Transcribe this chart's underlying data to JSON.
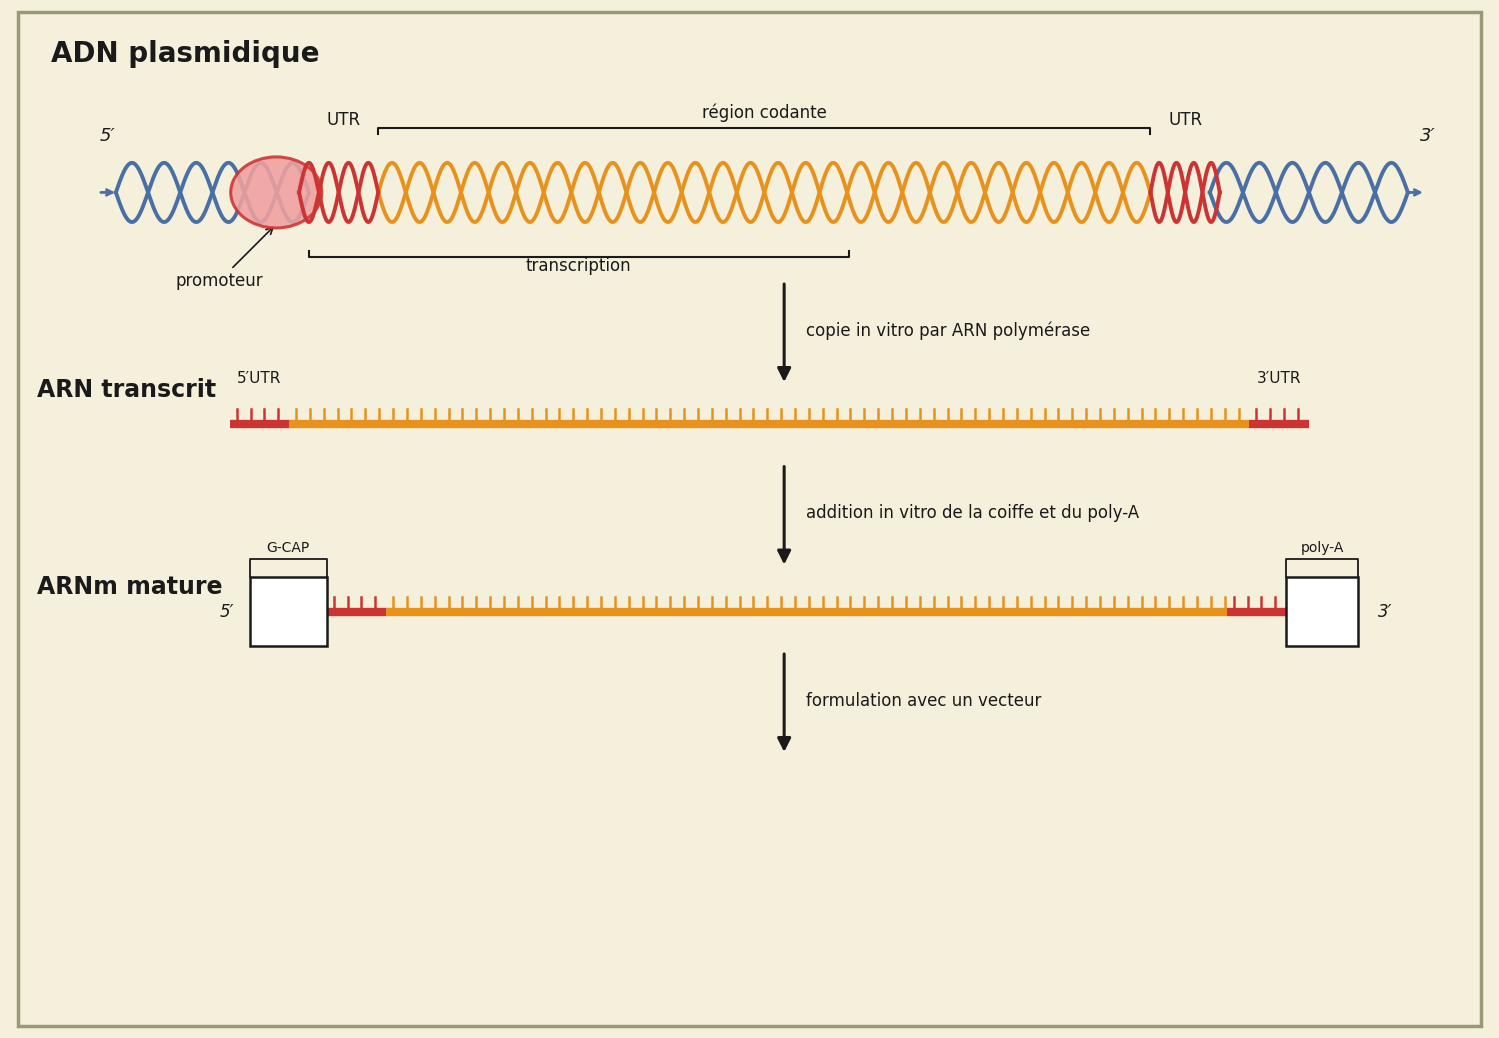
{
  "bg_color": "#f5f0dc",
  "title_adn": "ADN plasmidique",
  "title_arn": "ARN transcrit",
  "title_arnm": "ARNm mature",
  "label_5prime": "5′",
  "label_3prime": "3′",
  "label_utr": "UTR",
  "label_5utr": "5′UTR",
  "label_3utr": "3′UTR",
  "label_region_codante": "région codante",
  "label_promoteur": "promoteur",
  "label_transcription": "transcription",
  "label_step1": "copie in vitro par ARN polymérase",
  "label_step2": "addition in vitro de la coiffe et du poly-A",
  "label_step3": "formulation avec un vecteur",
  "label_gcap": "G-CAP",
  "label_polya": "poly-A",
  "dna_blue": "#4a6fa5",
  "dna_orange": "#e8921e",
  "dna_red": "#cc3333",
  "dna_pink": "#f0a0a0",
  "arn_orange": "#e8921e",
  "arn_red": "#cc3333",
  "poly_green": "#4aaa44",
  "arrow_color": "#1a1a1a",
  "text_color": "#1a1a1a",
  "border_color": "#999977"
}
